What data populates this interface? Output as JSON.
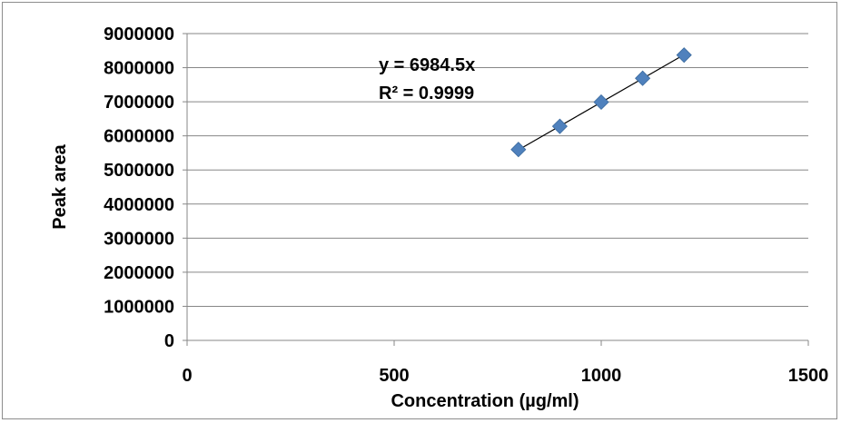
{
  "chart_data": {
    "type": "scatter",
    "title": "",
    "xlabel": "Concentration (µg/ml)",
    "ylabel": "Peak area",
    "xlim": [
      0,
      1500
    ],
    "ylim": [
      0,
      9000000
    ],
    "xticks": [
      0,
      500,
      1000,
      1500
    ],
    "yticks": [
      0,
      1000000,
      2000000,
      3000000,
      4000000,
      5000000,
      6000000,
      7000000,
      8000000,
      9000000
    ],
    "grid": "horizontal",
    "legend": "none",
    "series": [
      {
        "x": [
          800,
          900,
          1000,
          1100,
          1200
        ],
        "y": [
          5600000,
          6280000,
          6990000,
          7690000,
          8370000
        ],
        "marker": "diamond",
        "color": "#4f81bd"
      }
    ],
    "trendline": {
      "slope": 6984.5,
      "x_range": [
        800,
        1200
      ],
      "color": "#000000",
      "equation": "y = 6984.5x",
      "r_squared": "R² = 0.9999"
    }
  }
}
